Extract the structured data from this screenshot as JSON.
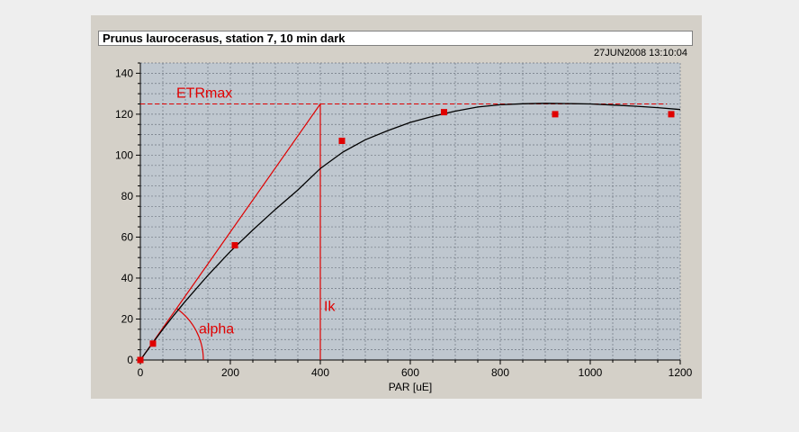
{
  "window": {
    "title": "Prunus laurocerasus, station 7, 10 min dark",
    "timestamp": "27JUN2008  13:10:04"
  },
  "chart_data": {
    "type": "scatter",
    "title": "Prunus laurocerasus, station 7, 10 min dark",
    "xlabel": "PAR [uE]",
    "ylabel": "",
    "xlim": [
      0,
      1200
    ],
    "ylim": [
      0,
      145
    ],
    "xticks": [
      0,
      200,
      400,
      600,
      800,
      1000,
      1200
    ],
    "yticks": [
      0,
      20,
      40,
      60,
      80,
      100,
      120,
      140
    ],
    "grid": true,
    "series": [
      {
        "kind": "points",
        "color": "#e00000",
        "x": [
          0,
          28,
          210,
          448,
          675,
          922,
          1180
        ],
        "y": [
          0,
          8,
          56,
          107,
          121,
          120,
          120
        ]
      },
      {
        "kind": "fit-curve",
        "color": "#000000",
        "x": [
          0,
          25,
          50,
          75,
          100,
          150,
          200,
          250,
          300,
          350,
          400,
          450,
          500,
          550,
          600,
          650,
          700,
          750,
          800,
          850,
          900,
          950,
          1000,
          1050,
          1100,
          1150,
          1200
        ],
        "y": [
          0,
          7.6,
          15.0,
          22.0,
          28.7,
          41.3,
          53.0,
          63.5,
          73.5,
          83.0,
          93.5,
          101.5,
          107.5,
          112.0,
          116.0,
          119.0,
          121.5,
          123.5,
          124.6,
          125.1,
          125.3,
          125.2,
          125.0,
          124.5,
          123.9,
          123.2,
          122.3
        ]
      }
    ],
    "annotations": {
      "etrmax_label": "ETRmax",
      "etrmax_value": 125,
      "ik_label": "Ik",
      "ik_value": 400,
      "alpha_label": "alpha",
      "color": "#e00000"
    }
  }
}
